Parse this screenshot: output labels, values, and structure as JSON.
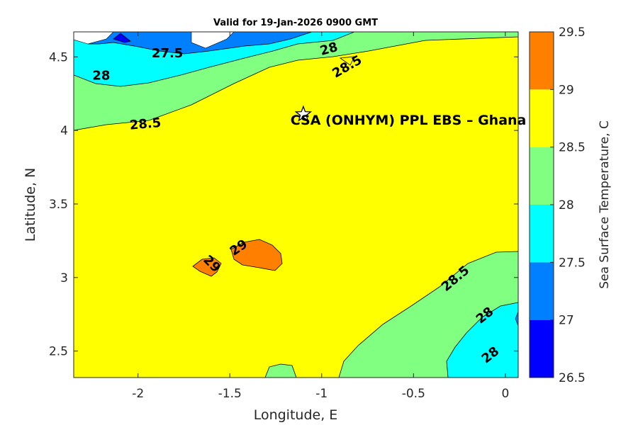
{
  "chart_data": {
    "type": "contour",
    "title": "Valid for 19-Jan-2026 0900 GMT",
    "xlabel": "Longitude, E",
    "ylabel": "Latitude, N",
    "xlim": [
      -2.35,
      0.07
    ],
    "ylim": [
      2.32,
      4.67
    ],
    "xticks": [
      -2,
      -1.5,
      -1,
      -0.5,
      0
    ],
    "xtick_labels": [
      "-2",
      "-1.5",
      "-1",
      "-0.5",
      "0"
    ],
    "yticks": [
      2.5,
      3,
      3.5,
      4,
      4.5
    ],
    "ytick_labels": [
      "2.5",
      "3",
      "3.5",
      "4",
      "4.5"
    ],
    "grid": false,
    "colorbar": {
      "label": "Sea Surface Temperature, C",
      "levels": [
        26.5,
        27,
        27.5,
        28,
        28.5,
        29,
        29.5
      ],
      "tick_labels": [
        "26.5",
        "27",
        "27.5",
        "28",
        "28.5",
        "29",
        "29.5"
      ],
      "colors": [
        "#0000ff",
        "#0080ff",
        "#00ffff",
        "#80ff80",
        "#ffff00",
        "#ff8000"
      ]
    },
    "contour_labels": [
      {
        "text": "27.5",
        "lon": -1.84,
        "lat": 4.52,
        "angle": 0
      },
      {
        "text": "28",
        "lon": -2.2,
        "lat": 4.37,
        "angle": 0
      },
      {
        "text": "28",
        "lon": -0.96,
        "lat": 4.55,
        "angle": -16
      },
      {
        "text": "28.5",
        "lon": -0.86,
        "lat": 4.43,
        "angle": -30
      },
      {
        "text": "28.5",
        "lon": -1.96,
        "lat": 4.04,
        "angle": -5
      },
      {
        "text": "29",
        "lon": -1.6,
        "lat": 3.09,
        "angle": 45
      },
      {
        "text": "29",
        "lon": -1.45,
        "lat": 3.2,
        "angle": -35
      },
      {
        "text": "28.5",
        "lon": -0.27,
        "lat": 2.99,
        "angle": -40
      },
      {
        "text": "28",
        "lon": -0.11,
        "lat": 2.74,
        "angle": -38
      },
      {
        "text": "28",
        "lon": -0.08,
        "lat": 2.47,
        "angle": -38
      }
    ],
    "marker": {
      "symbol": "star",
      "lon": -1.1,
      "lat": 4.11
    },
    "annotations": [
      {
        "text": "CSA (ONHYM) PPL EBS  – Ghana",
        "lon": -1.17,
        "lat": 4.04
      }
    ]
  }
}
